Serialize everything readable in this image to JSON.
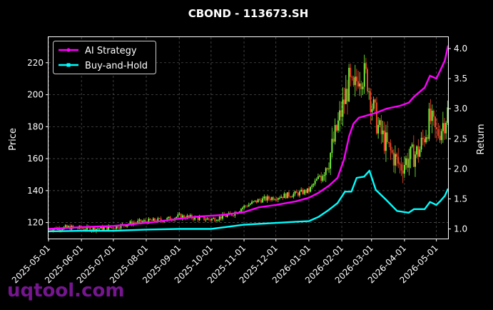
{
  "chart_data": {
    "type": "line",
    "title": "CBOND - 113673.SH",
    "ylabel_left": "Price",
    "ylabel_right": "Return",
    "ylim_left": [
      110,
      236
    ],
    "ylim_right": [
      0.84,
      4.19
    ],
    "yticks_left": [
      120,
      140,
      160,
      180,
      200,
      220
    ],
    "yticks_right": [
      1.0,
      1.5,
      2.0,
      2.5,
      3.0,
      3.5,
      4.0
    ],
    "xticks": [
      "2025-05-01",
      "2025-06-01",
      "2025-07-01",
      "2025-08-01",
      "2025-09-01",
      "2025-10-01",
      "2025-11-01",
      "2025-12-01",
      "2026-01-01",
      "2026-02-01",
      "2026-03-01",
      "2026-04-01",
      "2026-05-01"
    ],
    "xlim": [
      "2025-05-01",
      "2026-05-12"
    ],
    "grid": true,
    "legend_position": "top-left",
    "colors": {
      "ai": "#ff00ff",
      "bh": "#00ffff",
      "up": "#7cff3a",
      "down": "#ff4a2a",
      "grid": "#5a5a5a",
      "watermark": "#8a1aa8"
    },
    "series": [
      {
        "name": "AI Strategy",
        "axis": "right",
        "points": [
          [
            "2025-05-01",
            1.0
          ],
          [
            "2025-06-01",
            1.03
          ],
          [
            "2025-07-01",
            1.05
          ],
          [
            "2025-07-20",
            1.08
          ],
          [
            "2025-08-10",
            1.12
          ],
          [
            "2025-09-01",
            1.17
          ],
          [
            "2025-09-20",
            1.21
          ],
          [
            "2025-10-10",
            1.23
          ],
          [
            "2025-11-01",
            1.28
          ],
          [
            "2025-11-15",
            1.36
          ],
          [
            "2025-12-01",
            1.4
          ],
          [
            "2025-12-20",
            1.46
          ],
          [
            "2026-01-01",
            1.52
          ],
          [
            "2026-01-10",
            1.6
          ],
          [
            "2026-01-20",
            1.72
          ],
          [
            "2026-01-28",
            1.85
          ],
          [
            "2026-02-03",
            2.15
          ],
          [
            "2026-02-08",
            2.55
          ],
          [
            "2026-02-12",
            2.75
          ],
          [
            "2026-02-17",
            2.85
          ],
          [
            "2026-02-27",
            2.9
          ],
          [
            "2026-03-05",
            2.93
          ],
          [
            "2026-03-15",
            3.0
          ],
          [
            "2026-03-28",
            3.05
          ],
          [
            "2026-04-05",
            3.1
          ],
          [
            "2026-04-10",
            3.2
          ],
          [
            "2026-04-20",
            3.35
          ],
          [
            "2026-04-25",
            3.55
          ],
          [
            "2026-05-01",
            3.5
          ],
          [
            "2026-05-05",
            3.65
          ],
          [
            "2026-05-09",
            3.8
          ],
          [
            "2026-05-12",
            4.05
          ]
        ]
      },
      {
        "name": "Buy-and-Hold",
        "axis": "right",
        "points": [
          [
            "2025-05-01",
            0.96
          ],
          [
            "2025-06-01",
            0.97
          ],
          [
            "2025-07-01",
            0.97
          ],
          [
            "2025-08-01",
            0.99
          ],
          [
            "2025-09-01",
            1.0
          ],
          [
            "2025-10-01",
            1.0
          ],
          [
            "2025-11-01",
            1.07
          ],
          [
            "2025-11-20",
            1.09
          ],
          [
            "2025-12-01",
            1.1
          ],
          [
            "2025-12-20",
            1.12
          ],
          [
            "2026-01-01",
            1.13
          ],
          [
            "2026-01-10",
            1.2
          ],
          [
            "2026-01-20",
            1.32
          ],
          [
            "2026-01-28",
            1.43
          ],
          [
            "2026-02-04",
            1.62
          ],
          [
            "2026-02-10",
            1.62
          ],
          [
            "2026-02-15",
            1.85
          ],
          [
            "2026-02-22",
            1.87
          ],
          [
            "2026-02-27",
            1.97
          ],
          [
            "2026-03-05",
            1.65
          ],
          [
            "2026-03-15",
            1.48
          ],
          [
            "2026-03-25",
            1.3
          ],
          [
            "2026-04-05",
            1.27
          ],
          [
            "2026-04-10",
            1.33
          ],
          [
            "2026-04-20",
            1.33
          ],
          [
            "2026-04-25",
            1.45
          ],
          [
            "2026-05-01",
            1.4
          ],
          [
            "2026-05-05",
            1.47
          ],
          [
            "2026-05-09",
            1.55
          ],
          [
            "2026-05-12",
            1.67
          ]
        ]
      },
      {
        "name": "OHLC candles",
        "axis": "left",
        "close_path": [
          [
            "2025-05-01",
            116
          ],
          [
            "2025-05-20",
            117
          ],
          [
            "2025-06-10",
            116
          ],
          [
            "2025-07-01",
            117
          ],
          [
            "2025-07-20",
            120
          ],
          [
            "2025-08-05",
            121
          ],
          [
            "2025-08-20",
            122
          ],
          [
            "2025-09-01",
            124
          ],
          [
            "2025-09-15",
            123
          ],
          [
            "2025-10-01",
            122
          ],
          [
            "2025-10-20",
            125
          ],
          [
            "2025-11-01",
            130
          ],
          [
            "2025-11-15",
            134
          ],
          [
            "2025-12-01",
            136
          ],
          [
            "2025-12-20",
            138
          ],
          [
            "2026-01-01",
            140
          ],
          [
            "2026-01-10",
            148
          ],
          [
            "2026-01-20",
            160
          ],
          [
            "2026-01-28",
            180
          ],
          [
            "2026-02-03",
            195
          ],
          [
            "2026-02-08",
            208
          ],
          [
            "2026-02-12",
            200
          ],
          [
            "2026-02-17",
            215
          ],
          [
            "2026-02-25",
            210
          ],
          [
            "2026-03-01",
            195
          ],
          [
            "2026-03-08",
            178
          ],
          [
            "2026-03-18",
            165
          ],
          [
            "2026-03-28",
            155
          ],
          [
            "2026-04-05",
            160
          ],
          [
            "2026-04-15",
            165
          ],
          [
            "2026-04-25",
            185
          ],
          [
            "2026-05-01",
            175
          ],
          [
            "2026-05-06",
            180
          ],
          [
            "2026-05-12",
            190
          ]
        ]
      }
    ]
  },
  "watermark": "uqtool.com"
}
